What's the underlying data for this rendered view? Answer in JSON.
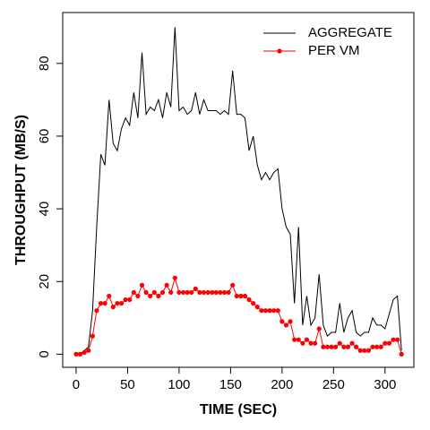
{
  "chart_data": {
    "type": "line",
    "xlabel": "TIME (SEC)",
    "ylabel": "THROUGHPUT (MB/S)",
    "x": [
      0,
      4,
      8,
      12,
      16,
      20,
      24,
      28,
      32,
      36,
      40,
      44,
      48,
      52,
      56,
      60,
      64,
      68,
      72,
      76,
      80,
      84,
      88,
      92,
      96,
      100,
      104,
      108,
      112,
      116,
      120,
      124,
      128,
      132,
      136,
      140,
      144,
      148,
      152,
      156,
      160,
      164,
      168,
      172,
      176,
      180,
      184,
      188,
      192,
      196,
      200,
      204,
      208,
      212,
      216,
      220,
      224,
      228,
      232,
      236,
      240,
      244,
      248,
      252,
      256,
      260,
      264,
      268,
      272,
      276,
      280,
      284,
      288,
      292,
      296,
      300,
      304,
      308,
      312,
      316
    ],
    "series": [
      {
        "name": "AGGREGATE",
        "color": "#000000",
        "markers": false,
        "values": [
          0.5,
          0,
          1,
          2,
          12,
          35,
          55,
          52,
          70,
          58,
          56,
          62,
          65,
          63,
          72,
          65,
          83,
          66,
          68,
          67,
          70,
          65,
          72,
          68,
          90,
          67,
          68,
          66,
          67,
          72,
          66,
          70,
          67,
          67,
          67,
          66,
          67,
          66,
          78,
          66,
          66,
          65,
          56,
          60,
          52,
          48,
          50,
          48,
          50,
          51,
          40,
          35,
          33,
          14,
          35,
          8,
          16,
          8,
          10,
          22,
          8,
          5,
          6,
          6,
          14,
          6,
          10,
          12,
          6,
          5,
          6,
          6,
          10,
          8,
          8,
          7,
          11,
          15,
          16,
          1
        ]
      },
      {
        "name": "PER VM",
        "color": "#ff0000",
        "markers": true,
        "values": [
          0,
          0,
          0.5,
          1,
          5,
          12,
          14,
          14,
          16,
          13,
          14,
          14,
          15,
          15,
          17,
          16,
          19,
          17,
          16,
          17,
          16,
          17,
          19,
          17,
          21,
          17,
          17,
          17,
          17,
          18,
          17,
          17,
          17,
          17,
          17,
          17,
          17,
          17,
          19,
          16,
          16,
          16,
          15,
          14,
          13,
          12,
          12,
          12,
          12,
          12,
          9,
          8,
          9,
          4,
          4,
          3,
          4,
          3,
          3,
          7,
          2,
          2,
          2,
          2,
          3,
          2,
          2,
          3,
          2,
          1,
          1,
          1,
          2,
          2,
          2,
          3,
          3,
          4,
          4,
          0
        ]
      }
    ],
    "xlim": [
      -13,
      328
    ],
    "ylim": [
      -3.6,
      94
    ],
    "xticks": [
      0,
      50,
      100,
      150,
      200,
      250,
      300
    ],
    "yticks": [
      0,
      20,
      40,
      60,
      80
    ],
    "legend": "topright"
  }
}
